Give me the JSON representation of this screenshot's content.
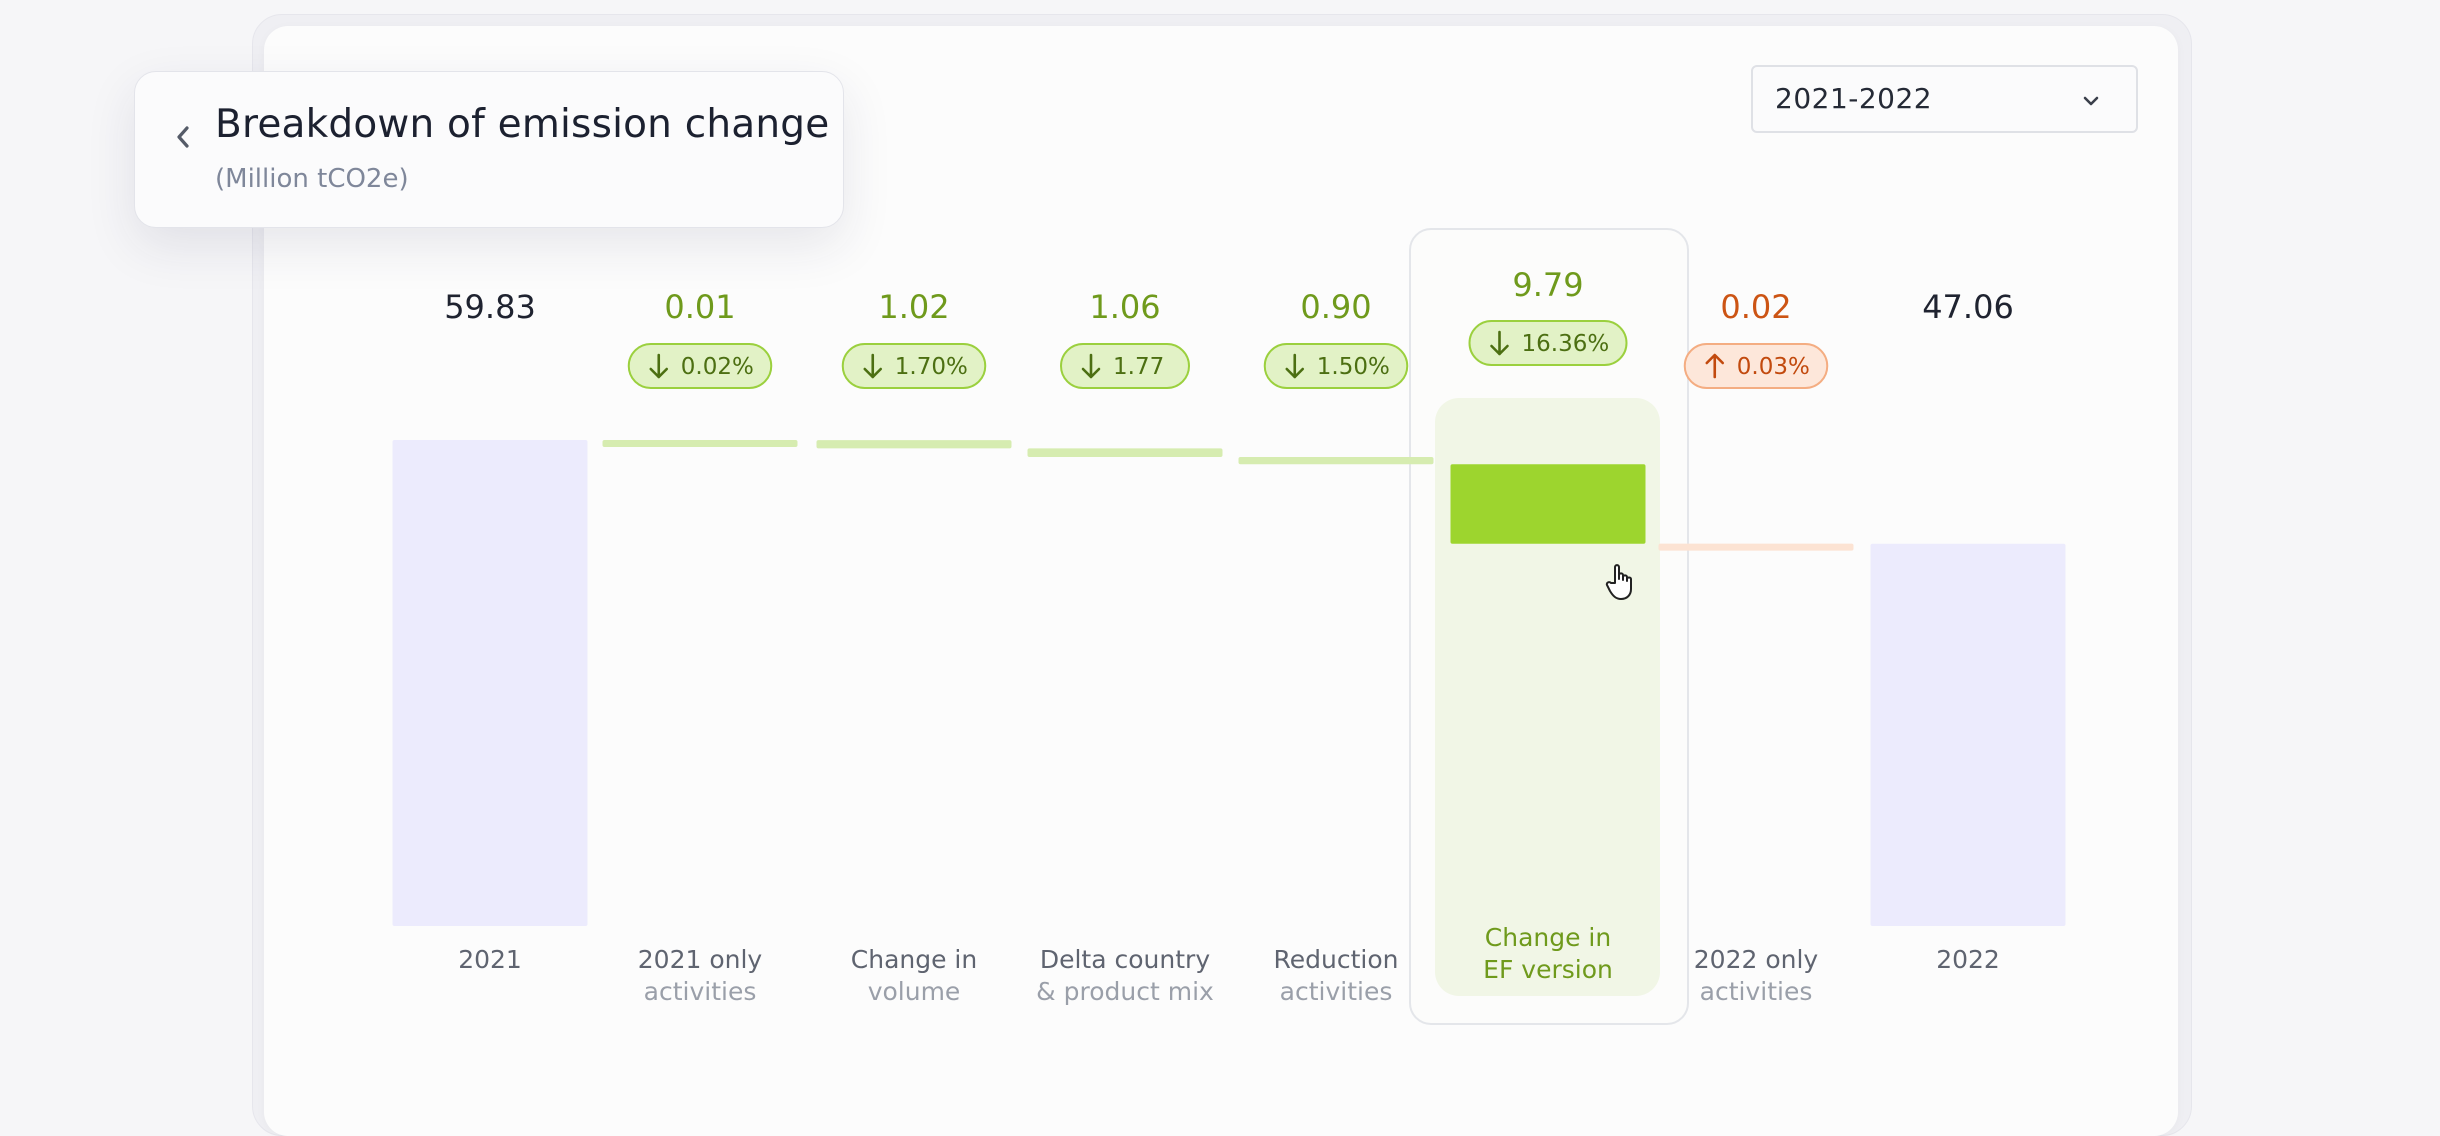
{
  "header": {
    "title": "Breakdown of emission change",
    "subtitle": "(Million tCO2e)"
  },
  "year_select": {
    "value": "2021-2022"
  },
  "icons": {
    "back": "chevron-left-icon",
    "select": "chevron-down-icon",
    "down": "arrow-down-icon",
    "up": "arrow-up-icon",
    "cursor": "hand-pointer-icon"
  },
  "colors": {
    "total_bar": "#ecebfd",
    "decrease_bar": "#d6ecb0",
    "decrease_bar_active": "#9dd52e",
    "increase_bar": "#fce3d3",
    "decrease_text": "#6f9a1c",
    "increase_text": "#cc5414",
    "total_text": "#1f2330",
    "decrease_badge_bg": "#e2f2c6",
    "decrease_badge_border": "#9bd03e",
    "increase_badge_bg": "#fde7da",
    "increase_badge_border": "#f4ad82",
    "highlight_label": "#6f9a1c"
  },
  "chart_data": {
    "type": "waterfall",
    "title": "Breakdown of emission change",
    "subtitle": "(Million tCO2e)",
    "period": "2021-2022",
    "active_index": 5,
    "items": [
      {
        "label_line1": "2021",
        "label_line2": "",
        "value": 59.83,
        "value_text": "59.83",
        "kind": "total"
      },
      {
        "label_line1": "2021 only",
        "label_line2": "activities",
        "value": -0.01,
        "value_text": "0.01",
        "kind": "decrease",
        "badge": "0.02%"
      },
      {
        "label_line1": "Change in",
        "label_line2": "volume",
        "value": -1.02,
        "value_text": "1.02",
        "kind": "decrease",
        "badge": "1.70%"
      },
      {
        "label_line1": "Delta country",
        "label_line2": "& product mix",
        "value": -1.06,
        "value_text": "1.06",
        "kind": "decrease",
        "badge": "1.77"
      },
      {
        "label_line1": "Reduction",
        "label_line2": "activities",
        "value": -0.9,
        "value_text": "0.90",
        "kind": "decrease",
        "badge": "1.50%"
      },
      {
        "label_line1": "Change in",
        "label_line2": "EF version",
        "value": -9.79,
        "value_text": "9.79",
        "kind": "decrease",
        "badge": "16.36%"
      },
      {
        "label_line1": "2022 only",
        "label_line2": "activities",
        "value": 0.02,
        "value_text": "0.02",
        "kind": "increase",
        "badge": "0.03%"
      },
      {
        "label_line1": "2022",
        "label_line2": "",
        "value": 47.06,
        "value_text": "47.06",
        "kind": "total"
      }
    ]
  }
}
